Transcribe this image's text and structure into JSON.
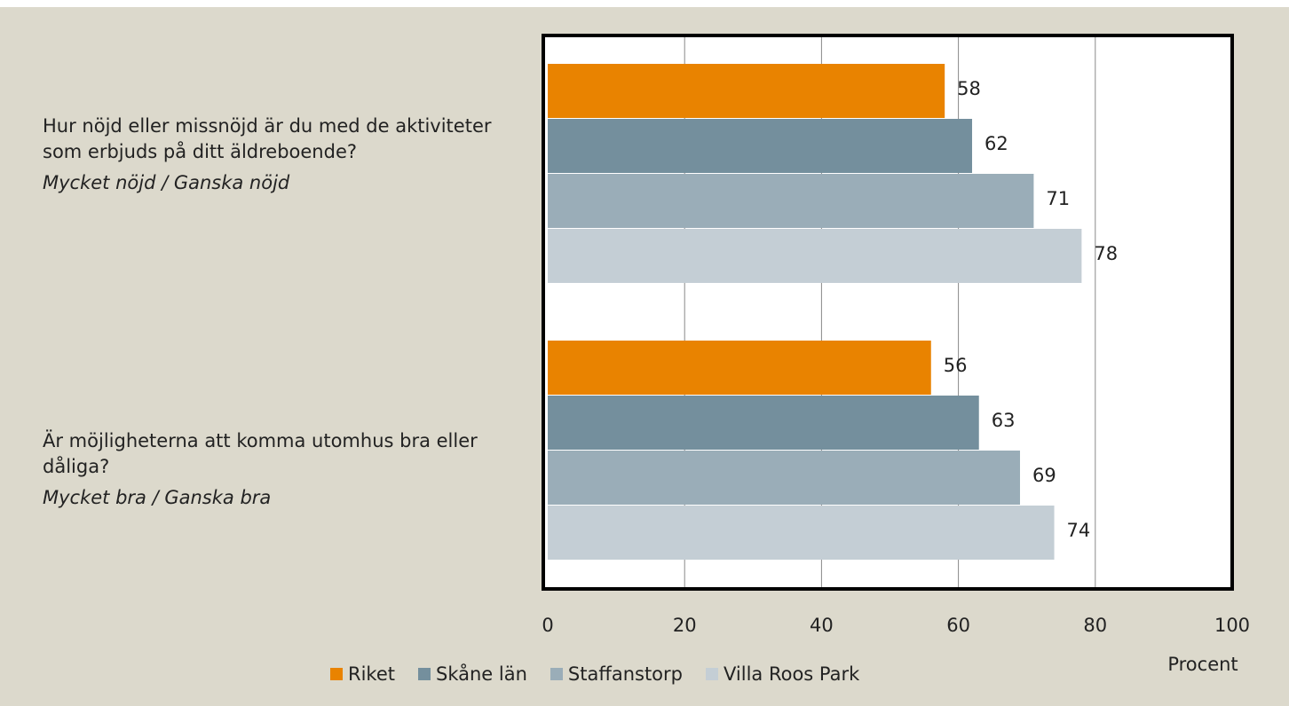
{
  "chart_data": {
    "type": "hbar",
    "categories": [
      "Hur nöjd eller missnöjd är du med de aktiviteter som erbjuds på ditt äldreboende?",
      "Är möjligheterna att komma utomhus bra eller dåliga?"
    ],
    "category_subtitles": [
      "Mycket nöjd / Ganska nöjd",
      "Mycket bra / Ganska bra"
    ],
    "series": [
      {
        "name": "Riket",
        "color": "#e98300",
        "values": [
          58,
          56
        ]
      },
      {
        "name": "Skåne län",
        "color": "#748f9d",
        "values": [
          62,
          63
        ]
      },
      {
        "name": "Staffanstorp",
        "color": "#9aadb8",
        "values": [
          71,
          69
        ]
      },
      {
        "name": "Villa Roos Park",
        "color": "#c4ced5",
        "values": [
          78,
          74
        ]
      }
    ],
    "x_label": "Procent",
    "xlim": [
      0,
      100
    ],
    "xticks": [
      0,
      20,
      40,
      60,
      80,
      100
    ],
    "grid": true
  }
}
